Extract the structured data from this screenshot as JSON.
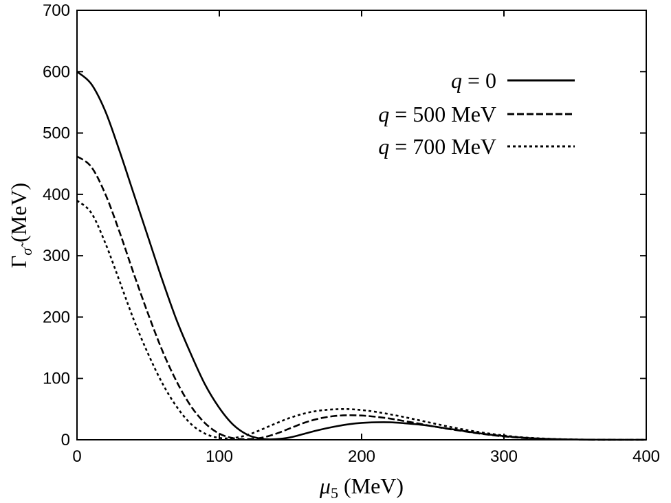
{
  "chart_data": {
    "type": "line",
    "title": "",
    "xlabel": "μ",
    "xlabel_subscript": "5",
    "xlabel_unit": " (MeV)",
    "ylabel": "Γ",
    "ylabel_subscript": "σ̃",
    "ylabel_unit": " (MeV)",
    "xlim": [
      0,
      400
    ],
    "ylim": [
      0,
      700
    ],
    "xticks": [
      0,
      100,
      200,
      300,
      400
    ],
    "yticks": [
      0,
      100,
      200,
      300,
      400,
      500,
      600,
      700
    ],
    "grid": false,
    "legend_position": "top-right",
    "series": [
      {
        "name": "q = 0",
        "legend_var": "q",
        "legend_eq": "=",
        "legend_value": "0",
        "dash": "solid",
        "x": [
          0,
          10,
          20,
          30,
          40,
          50,
          60,
          70,
          80,
          90,
          100,
          110,
          120,
          130,
          140,
          150,
          160,
          170,
          180,
          190,
          200,
          210,
          220,
          230,
          240,
          250,
          260,
          270,
          280,
          290,
          300,
          310,
          320,
          330,
          340,
          350,
          360,
          370,
          380,
          390,
          400
        ],
        "values": [
          600,
          580,
          535,
          470,
          400,
          330,
          260,
          195,
          140,
          90,
          52,
          24,
          8,
          1.5,
          1,
          4,
          10,
          16,
          21,
          25,
          27.5,
          28.5,
          28.5,
          27,
          25,
          22,
          18.5,
          15,
          11.5,
          8.5,
          6,
          4,
          2.5,
          1.5,
          0.8,
          0.4,
          0.2,
          0.1,
          0,
          0,
          0
        ]
      },
      {
        "name": "q = 500 MeV",
        "legend_var": "q",
        "legend_eq": "=",
        "legend_value": "500 MeV",
        "dash": "dashed",
        "x": [
          0,
          10,
          20,
          30,
          40,
          50,
          60,
          70,
          80,
          90,
          100,
          110,
          120,
          130,
          140,
          150,
          160,
          170,
          180,
          190,
          200,
          210,
          220,
          230,
          240,
          250,
          260,
          270,
          280,
          290,
          300,
          310,
          320,
          330,
          340,
          350,
          360,
          370,
          380,
          390,
          400
        ],
        "values": [
          462,
          445,
          400,
          338,
          270,
          205,
          145,
          95,
          55,
          27,
          10,
          2.5,
          1,
          3.5,
          10,
          19,
          28,
          34.5,
          38.5,
          40,
          39.5,
          37.5,
          34.5,
          30.5,
          26.5,
          22,
          18,
          14.5,
          11,
          8,
          5.5,
          3.5,
          2,
          1.2,
          0.6,
          0.3,
          0.1,
          0,
          0,
          0,
          0
        ]
      },
      {
        "name": "q = 700 MeV",
        "legend_var": "q",
        "legend_eq": "=",
        "legend_value": "700 MeV",
        "dash": "dotted",
        "x": [
          0,
          10,
          20,
          30,
          40,
          50,
          60,
          70,
          80,
          90,
          100,
          110,
          120,
          130,
          140,
          150,
          160,
          170,
          180,
          190,
          200,
          210,
          220,
          230,
          240,
          250,
          260,
          270,
          280,
          290,
          300,
          310,
          320,
          330,
          340,
          350,
          360,
          370,
          380,
          390,
          400
        ],
        "values": [
          390,
          370,
          320,
          258,
          195,
          140,
          92,
          54,
          26,
          10,
          3,
          3,
          8,
          17,
          27,
          36,
          43,
          47.5,
          49.5,
          50,
          48.5,
          45.5,
          41.5,
          37,
          32,
          27,
          22,
          17.5,
          13.5,
          10,
          7,
          4.5,
          3,
          1.8,
          1,
          0.5,
          0.2,
          0.1,
          0,
          0,
          0
        ]
      }
    ]
  }
}
